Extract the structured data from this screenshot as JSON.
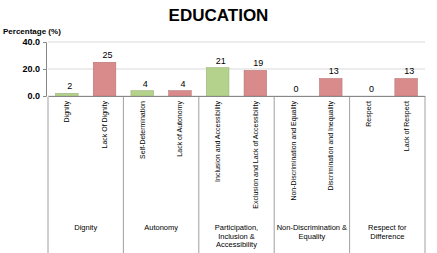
{
  "chart_data": {
    "type": "bar",
    "title": "EDUCATION",
    "y_label": "Percentage (%)",
    "categories": [
      "Dignity",
      "Lack Of Dignity",
      "Self-Determination",
      "Lack of Autonomy",
      "Inclusion and Accessibility",
      "Exclusion and Lack of Accessibility",
      "Non-Discrimination and Equality",
      "Discrimination and Inequality",
      "Respect",
      "Lack of Respect"
    ],
    "values": [
      2,
      25,
      4,
      4,
      21,
      19,
      0,
      13,
      0,
      13
    ],
    "colors": [
      "#b5d28c",
      "#d98a8b",
      "#b5d28c",
      "#d98a8b",
      "#b5d28c",
      "#d98a8b",
      "#b5d28c",
      "#d98a8b",
      "#b5d28c",
      "#d98a8b"
    ],
    "groups": [
      {
        "label": "Dignity",
        "size": 2
      },
      {
        "label": "Autonomy",
        "size": 2
      },
      {
        "label": "Participation, Inclusion & Accessibility",
        "size": 2
      },
      {
        "label": "Non-Discrimination & Equality",
        "size": 2
      },
      {
        "label": "Respect for Difference",
        "size": 2
      }
    ],
    "ylim": [
      0,
      40
    ],
    "yticks": [
      {
        "value": 0,
        "label": "0.0"
      },
      {
        "value": 20,
        "label": "20.0"
      },
      {
        "value": 40,
        "label": "40.0"
      }
    ],
    "grid": true,
    "data_labels": true
  }
}
